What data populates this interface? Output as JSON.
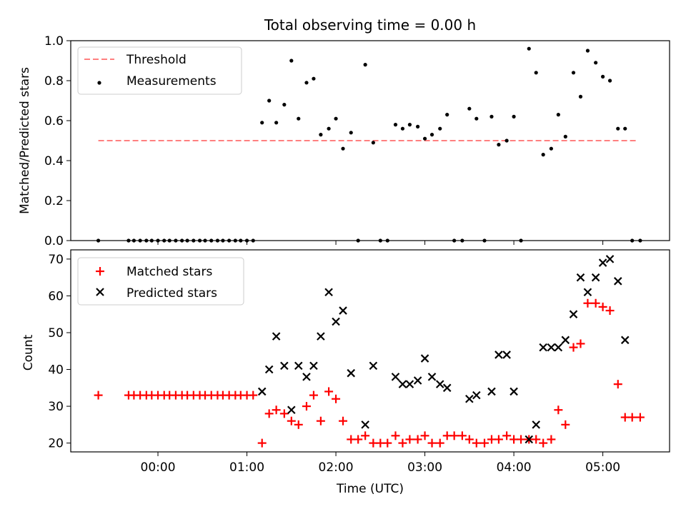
{
  "colors": {
    "threshold": "#ff7f7f",
    "measurement": "#000000",
    "matched": "#ff0000",
    "predicted": "#000000"
  },
  "chart_data": [
    {
      "type": "scatter",
      "title": "Total observing time = 0.00 h",
      "xlabel": "",
      "ylabel": "Matched/Predicted stars",
      "ylim": [
        0,
        1.0
      ],
      "yticks": [
        "0.0",
        "0.2",
        "0.4",
        "0.6",
        "0.8",
        "1.0"
      ],
      "xlim_hours": [
        -0.98,
        5.75
      ],
      "legend_position": "top-left",
      "series": [
        {
          "name": "Threshold",
          "style": "dashed-line",
          "x": [
            -0.67,
            5.4
          ],
          "y": [
            0.5,
            0.5
          ]
        },
        {
          "name": "Measurements",
          "style": "dot",
          "x": [
            -0.67,
            -0.33,
            -0.27,
            -0.2,
            -0.13,
            -0.07,
            0,
            0.07,
            0.13,
            0.2,
            0.27,
            0.33,
            0.4,
            0.47,
            0.53,
            0.6,
            0.67,
            0.73,
            0.8,
            0.87,
            0.93,
            1,
            1.07,
            1.17,
            1.25,
            1.33,
            1.42,
            1.5,
            1.58,
            1.67,
            1.75,
            1.83,
            1.92,
            2,
            2.08,
            2.17,
            2.25,
            2.33,
            2.42,
            2.5,
            2.58,
            2.67,
            2.75,
            2.83,
            2.92,
            3,
            3.08,
            3.17,
            3.25,
            3.33,
            3.42,
            3.5,
            3.58,
            3.67,
            3.75,
            3.83,
            3.92,
            4,
            4.08,
            4.17,
            4.25,
            4.33,
            4.42,
            4.5,
            4.58,
            4.67,
            4.75,
            4.83,
            4.92,
            5,
            5.08,
            5.17,
            5.25,
            5.33,
            5.42
          ],
          "y": [
            0,
            0,
            0,
            0,
            0,
            0,
            0,
            0,
            0,
            0,
            0,
            0,
            0,
            0,
            0,
            0,
            0,
            0,
            0,
            0,
            0,
            0,
            0,
            0.59,
            0.7,
            0.59,
            0.68,
            0.9,
            0.61,
            0.79,
            0.81,
            0.53,
            0.56,
            0.61,
            0.46,
            0.54,
            0,
            0.88,
            0.49,
            0,
            0,
            0.58,
            0.56,
            0.58,
            0.57,
            0.51,
            0.53,
            0.56,
            0.63,
            0,
            0,
            0.66,
            0.61,
            0,
            0.62,
            0.48,
            0.5,
            0.62,
            0,
            0.96,
            0.84,
            0.43,
            0.46,
            0.63,
            0.52,
            0.84,
            0.72,
            0.95,
            0.89,
            0.82,
            0.8,
            0.56,
            0.56,
            0,
            0
          ]
        }
      ]
    },
    {
      "type": "scatter",
      "title": "",
      "xlabel": "Time (UTC)",
      "ylabel": "Count",
      "ylim": [
        17.6,
        72.5
      ],
      "yticks": [
        "20",
        "30",
        "40",
        "50",
        "60",
        "70"
      ],
      "xlim_hours": [
        -0.98,
        5.75
      ],
      "xticks": [
        "00:00",
        "01:00",
        "02:00",
        "03:00",
        "04:00",
        "05:00"
      ],
      "legend_position": "top-left",
      "series": [
        {
          "name": "Matched stars",
          "style": "plus",
          "x": [
            -0.67,
            -0.33,
            -0.27,
            -0.2,
            -0.13,
            -0.07,
            0,
            0.07,
            0.13,
            0.2,
            0.27,
            0.33,
            0.4,
            0.47,
            0.53,
            0.6,
            0.67,
            0.73,
            0.8,
            0.87,
            0.93,
            1,
            1.07,
            1.17,
            1.25,
            1.33,
            1.42,
            1.5,
            1.58,
            1.67,
            1.75,
            1.83,
            1.92,
            2,
            2.08,
            2.17,
            2.25,
            2.33,
            2.42,
            2.5,
            2.58,
            2.67,
            2.75,
            2.83,
            2.92,
            3,
            3.08,
            3.17,
            3.25,
            3.33,
            3.42,
            3.5,
            3.58,
            3.67,
            3.75,
            3.83,
            3.92,
            4,
            4.08,
            4.17,
            4.25,
            4.33,
            4.42,
            4.5,
            4.58,
            4.67,
            4.75,
            4.83,
            4.92,
            5,
            5.08,
            5.17,
            5.25,
            5.33,
            5.42
          ],
          "y": [
            33,
            33,
            33,
            33,
            33,
            33,
            33,
            33,
            33,
            33,
            33,
            33,
            33,
            33,
            33,
            33,
            33,
            33,
            33,
            33,
            33,
            33,
            33,
            20,
            28,
            29,
            28,
            26,
            25,
            30,
            33,
            26,
            34,
            32,
            26,
            21,
            21,
            22,
            20,
            20,
            20,
            22,
            20,
            21,
            21,
            22,
            20,
            20,
            22,
            22,
            22,
            21,
            20,
            20,
            21,
            21,
            22,
            21,
            21,
            21,
            21,
            20,
            21,
            29,
            25,
            46,
            47,
            58,
            58,
            57,
            56,
            36,
            27,
            27,
            27
          ]
        },
        {
          "name": "Predicted stars",
          "style": "cross",
          "x": [
            1.17,
            1.25,
            1.33,
            1.42,
            1.5,
            1.58,
            1.67,
            1.75,
            1.83,
            1.92,
            2,
            2.08,
            2.17,
            2.33,
            2.42,
            2.67,
            2.75,
            2.83,
            2.92,
            3,
            3.08,
            3.17,
            3.25,
            3.5,
            3.58,
            3.75,
            3.83,
            3.92,
            4,
            4.17,
            4.25,
            4.33,
            4.42,
            4.5,
            4.58,
            4.67,
            4.75,
            4.83,
            4.92,
            5,
            5.08,
            5.17,
            5.25
          ],
          "y": [
            34,
            40,
            49,
            41,
            29,
            41,
            38,
            41,
            49,
            61,
            53,
            56,
            39,
            25,
            41,
            38,
            36,
            36,
            37,
            43,
            38,
            36,
            35,
            32,
            33,
            34,
            44,
            44,
            34,
            21,
            25,
            46,
            46,
            46,
            48,
            55,
            65,
            61,
            65,
            69,
            70,
            64,
            48
          ]
        }
      ]
    }
  ]
}
